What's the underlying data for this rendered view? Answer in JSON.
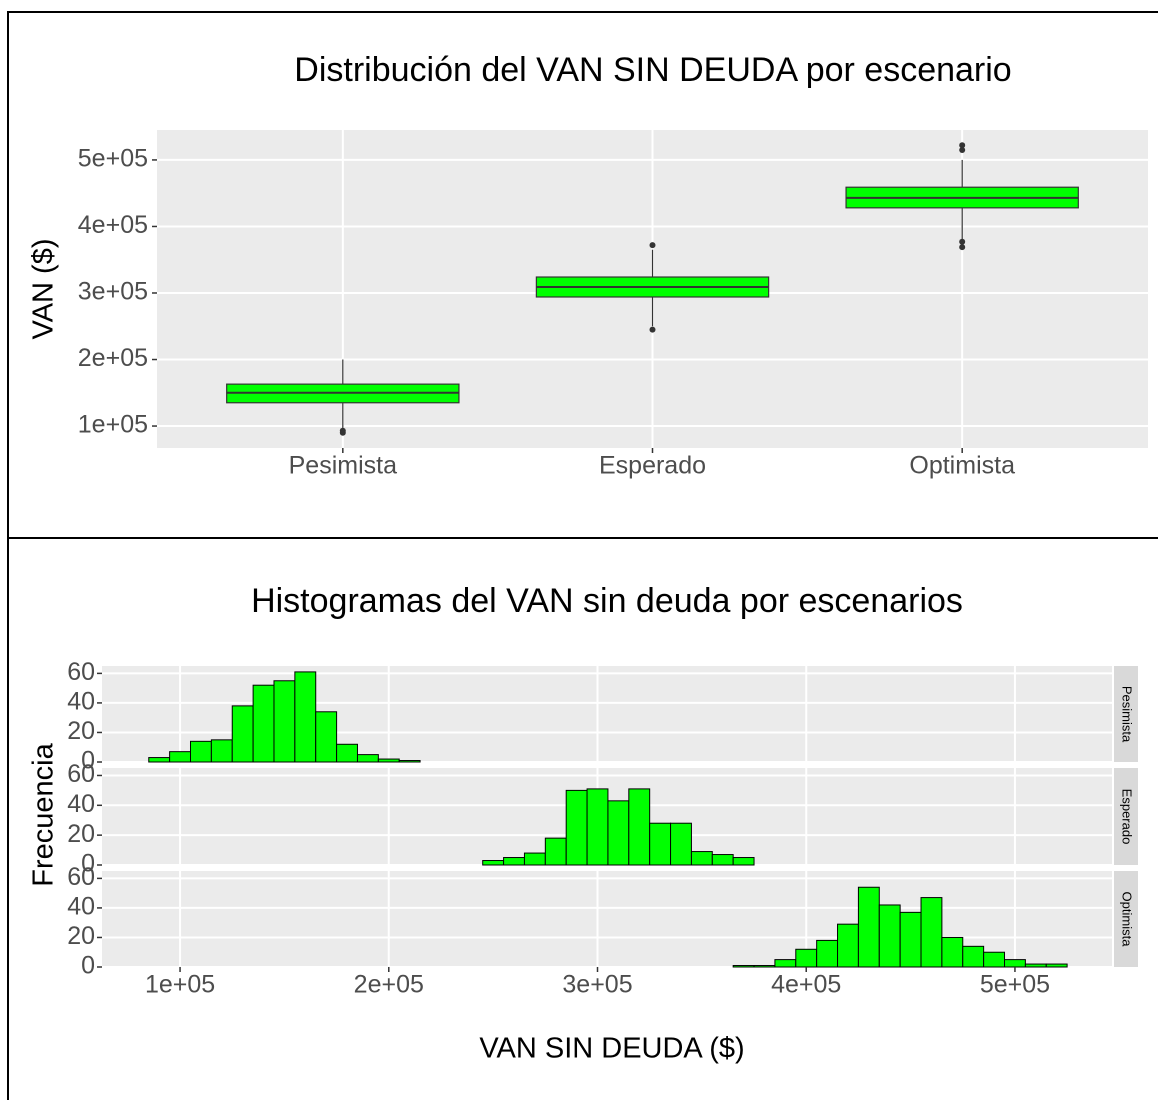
{
  "chart_data": [
    {
      "type": "boxplot",
      "title": "Distribución del VAN SIN DEUDA por escenario",
      "y_label": "VAN ($)",
      "categories": [
        "Pesimista",
        "Esperado",
        "Optimista"
      ],
      "color": "#00ff00",
      "q1": [
        135000,
        294000,
        428000
      ],
      "median": [
        150000,
        309000,
        443000
      ],
      "q3": [
        163000,
        324000,
        459000
      ],
      "whisker_low": [
        97000,
        250000,
        380000
      ],
      "whisker_high": [
        200000,
        365000,
        500000
      ],
      "outliers": [
        [
          93000,
          90000
        ],
        [
          372000,
          245000
        ],
        [
          522000,
          515000,
          377000,
          369000
        ]
      ],
      "ylim": [
        67000,
        545000
      ],
      "yticks": [
        {
          "value": 100000,
          "label": "1e+05"
        },
        {
          "value": 200000,
          "label": "2e+05"
        },
        {
          "value": 300000,
          "label": "3e+05"
        },
        {
          "value": 400000,
          "label": "4e+05"
        },
        {
          "value": 500000,
          "label": "5e+05"
        }
      ],
      "grid": true
    },
    {
      "type": "histogram",
      "title": "Histogramas del VAN sin deuda por escenarios",
      "x_label": "VAN SIN DEUDA ($)",
      "y_label": "Frecuencia",
      "bins": [
        85000,
        95000,
        105000,
        115000,
        125000,
        135000,
        145000,
        155000,
        165000,
        175000,
        185000,
        195000,
        205000,
        215000,
        225000,
        235000,
        245000,
        255000,
        265000,
        275000,
        285000,
        295000,
        305000,
        315000,
        325000,
        335000,
        345000,
        355000,
        365000,
        375000,
        385000,
        395000,
        405000,
        415000,
        425000,
        435000,
        445000,
        455000,
        465000,
        475000,
        485000,
        495000,
        505000,
        515000,
        525000
      ],
      "series": [
        {
          "name": "Pesimista",
          "color": "#00ff00",
          "values": [
            3,
            7,
            14,
            15,
            38,
            52,
            55,
            61,
            34,
            12,
            5,
            2,
            1,
            0,
            0,
            0,
            0,
            0,
            0,
            0,
            0,
            0,
            0,
            0,
            0,
            0,
            0,
            0,
            0,
            0,
            0,
            0,
            0,
            0,
            0,
            0,
            0,
            0,
            0,
            0,
            0,
            0,
            0,
            0
          ]
        },
        {
          "name": "Esperado",
          "color": "#00ff00",
          "values": [
            0,
            0,
            0,
            0,
            0,
            0,
            0,
            0,
            0,
            0,
            0,
            0,
            0,
            0,
            0,
            0,
            3,
            5,
            8,
            18,
            50,
            51,
            43,
            51,
            28,
            28,
            9,
            7,
            5,
            0,
            0,
            0,
            0,
            0,
            0,
            0,
            0,
            0,
            0,
            0,
            0,
            0,
            0,
            0
          ]
        },
        {
          "name": "Optimista",
          "color": "#00ff00",
          "values": [
            0,
            0,
            0,
            0,
            0,
            0,
            0,
            0,
            0,
            0,
            0,
            0,
            0,
            0,
            0,
            0,
            0,
            0,
            0,
            0,
            0,
            0,
            0,
            0,
            0,
            0,
            0,
            0,
            1,
            1,
            5,
            12,
            18,
            29,
            54,
            42,
            37,
            47,
            20,
            14,
            10,
            5,
            2,
            2
          ]
        }
      ],
      "xlim": [
        62600,
        546500
      ],
      "xticks": [
        {
          "value": 100000,
          "label": "1e+05"
        },
        {
          "value": 200000,
          "label": "2e+05"
        },
        {
          "value": 300000,
          "label": "3e+05"
        },
        {
          "value": 400000,
          "label": "4e+05"
        },
        {
          "value": 500000,
          "label": "5e+05"
        }
      ],
      "ylim": [
        0,
        65
      ],
      "yticks": [
        0,
        20,
        40,
        60
      ],
      "grid": true
    }
  ]
}
